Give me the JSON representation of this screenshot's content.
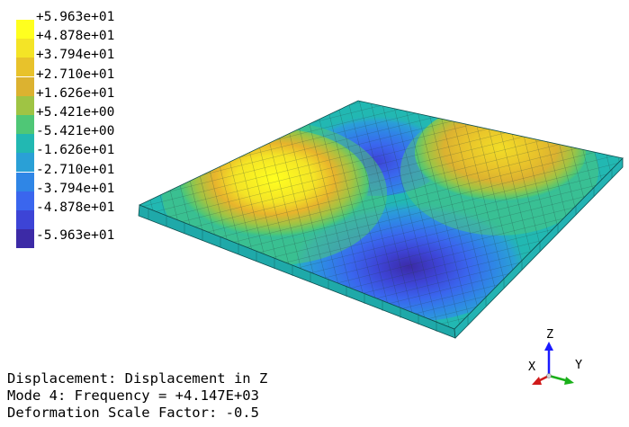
{
  "legend": {
    "items": [
      {
        "label": "+5.963e+01",
        "color": "#ffff1f"
      },
      {
        "label": "+4.878e+01",
        "color": "#f4e426"
      },
      {
        "label": "+3.794e+01",
        "color": "#e8c22b"
      },
      {
        "label": "+2.710e+01",
        "color": "#dcb230"
      },
      {
        "label": "+1.626e+01",
        "color": "#9fc444"
      },
      {
        "label": "+5.421e+00",
        "color": "#4fc776"
      },
      {
        "label": "-5.421e+00",
        "color": "#22b8b2"
      },
      {
        "label": "-1.626e+01",
        "color": "#2aa0d6"
      },
      {
        "label": "-2.710e+01",
        "color": "#2f86e6"
      },
      {
        "label": "-3.794e+01",
        "color": "#3a66ee"
      },
      {
        "label": "-4.878e+01",
        "color": "#3d44d6"
      },
      {
        "label": "-5.963e+01",
        "color": "#3c2aa6"
      }
    ]
  },
  "info": {
    "line1": "Displacement: Displacement in Z",
    "line2": "Mode 4: Frequency = +4.147E+03",
    "line3": "Deformation Scale Factor: -0.5"
  },
  "triad": {
    "z_label": "Z",
    "x_label": "X",
    "y_label": "Y",
    "z_color": "#1a1aff",
    "x_color": "#d01a1a",
    "y_color": "#1ab01a"
  }
}
